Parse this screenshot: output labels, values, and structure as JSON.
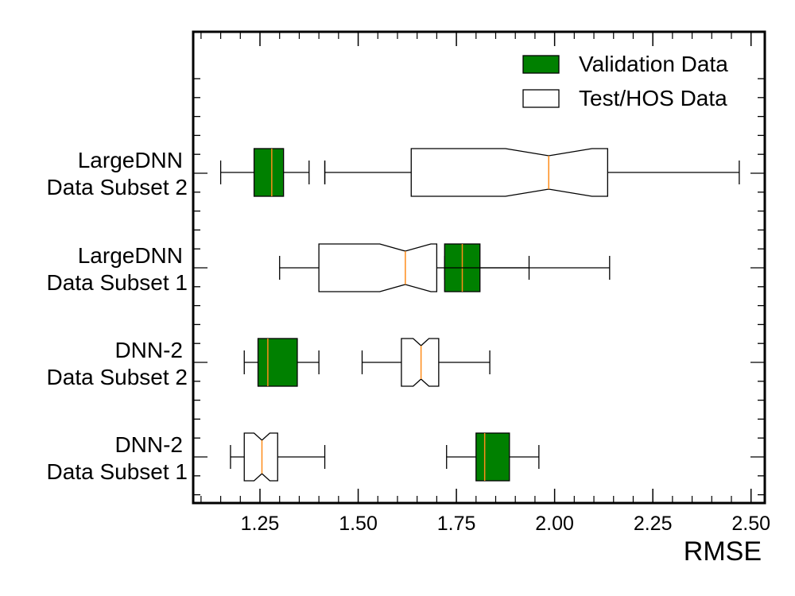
{
  "chart_data": {
    "type": "box",
    "orientation": "horizontal",
    "xlabel": "RMSE",
    "xlim": [
      1.08,
      2.535
    ],
    "xticks": [
      "1.25",
      "1.50",
      "1.75",
      "2.00",
      "2.25",
      "2.50"
    ],
    "categories": [
      [
        "DNN-2",
        "Data Subset 1"
      ],
      [
        "DNN-2",
        "Data Subset 2"
      ],
      [
        "LargeDNN",
        "Data Subset 1"
      ],
      [
        "LargeDNN",
        "Data Subset 2"
      ]
    ],
    "legend": {
      "position": "top-right",
      "entries": [
        "Validation Data",
        "Test/HOS Data"
      ]
    },
    "series": [
      {
        "name": "Validation Data",
        "color": "#008000",
        "notched": false,
        "boxes": [
          {
            "whislo": 1.725,
            "q1": 1.8,
            "med": 1.822,
            "q3": 1.885,
            "whishi": 1.96,
            "fliers": []
          },
          {
            "whislo": 1.21,
            "q1": 1.245,
            "med": 1.27,
            "q3": 1.345,
            "whishi": 1.4,
            "fliers": []
          },
          {
            "whislo": 1.72,
            "q1": 1.72,
            "med": 1.765,
            "q3": 1.81,
            "whishi": 1.935,
            "fliers": []
          },
          {
            "whislo": 1.15,
            "q1": 1.235,
            "med": 1.28,
            "q3": 1.31,
            "whishi": 1.375,
            "fliers": [
              1.415
            ]
          }
        ]
      },
      {
        "name": "Test/HOS Data",
        "color": "#ffffff",
        "notched": true,
        "boxes": [
          {
            "whislo": 1.175,
            "q1": 1.21,
            "med": 1.255,
            "q3": 1.295,
            "whishi": 1.415,
            "notch": [
              1.235,
              1.275
            ],
            "fliers": []
          },
          {
            "whislo": 1.51,
            "q1": 1.61,
            "med": 1.66,
            "q3": 1.705,
            "whishi": 1.835,
            "notch": [
              1.64,
              1.68
            ],
            "fliers": []
          },
          {
            "whislo": 1.3,
            "q1": 1.4,
            "med": 1.62,
            "q3": 1.7,
            "whishi": 2.14,
            "notch": [
              1.555,
              1.685
            ],
            "fliers": []
          },
          {
            "whislo": 1.415,
            "q1": 1.635,
            "med": 1.985,
            "q3": 2.135,
            "whishi": 2.47,
            "notch": [
              1.875,
              2.095
            ],
            "fliers": []
          }
        ]
      }
    ],
    "median_color": "#ff8c1a"
  }
}
